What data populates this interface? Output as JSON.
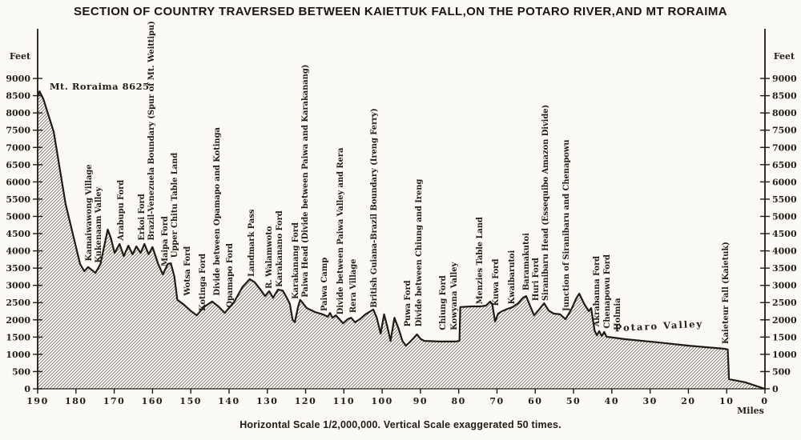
{
  "page": {
    "background": "#fbfaf5",
    "ink": "#1f1b15"
  },
  "chart_data": {
    "type": "area",
    "title": "SECTION OF COUNTRY TRAVERSED BETWEEN KAIETTUK FALL,ON THE POTARO RIVER,AND MT RORAIMA",
    "caption": "Horizontal Scale 1/2,000,000. Vertical Scale exaggerated 50 times.",
    "x_axis": {
      "unit": "Miles",
      "min": 0,
      "max": 190,
      "tick_step": 10,
      "direction": "190 at left, 0 at right",
      "ticks": [
        190,
        180,
        170,
        160,
        150,
        140,
        130,
        120,
        110,
        100,
        90,
        80,
        70,
        60,
        50,
        40,
        30,
        20,
        10,
        0
      ]
    },
    "y_axis": {
      "unit": "Feet",
      "min": 0,
      "max": 9000,
      "tick_step": 500,
      "sides": [
        "left",
        "right"
      ],
      "ticks": [
        0,
        500,
        1000,
        1500,
        2000,
        2500,
        3000,
        3500,
        4000,
        4500,
        5000,
        5500,
        6000,
        6500,
        7000,
        7500,
        8000,
        8500,
        9000
      ]
    },
    "horizontal_scale": "1/2,000,000",
    "vertical_exaggeration": "50 times",
    "profile": {
      "x_meaning": "miles from Kaieteur (Kaietuk) Fall",
      "y_meaning": "elevation in feet",
      "points": [
        [
          190.0,
          8480
        ],
        [
          189.5,
          8625
        ],
        [
          188.5,
          8400
        ],
        [
          185.8,
          7450
        ],
        [
          182.7,
          5360
        ],
        [
          178.9,
          3620
        ],
        [
          177.8,
          3410
        ],
        [
          176.8,
          3530
        ],
        [
          176.0,
          3460
        ],
        [
          174.9,
          3360
        ],
        [
          173.6,
          3620
        ],
        [
          171.7,
          4620
        ],
        [
          170.9,
          4380
        ],
        [
          169.9,
          3940
        ],
        [
          168.6,
          4200
        ],
        [
          167.5,
          3850
        ],
        [
          166.3,
          4150
        ],
        [
          165.2,
          3900
        ],
        [
          164.2,
          4130
        ],
        [
          163.1,
          3940
        ],
        [
          162.1,
          4200
        ],
        [
          161.0,
          3900
        ],
        [
          160.0,
          4110
        ],
        [
          158.5,
          3620
        ],
        [
          157.3,
          3320
        ],
        [
          156.0,
          3620
        ],
        [
          155.2,
          3640
        ],
        [
          154.3,
          3270
        ],
        [
          153.5,
          2580
        ],
        [
          151.8,
          2440
        ],
        [
          150.1,
          2270
        ],
        [
          148.4,
          2130
        ],
        [
          146.6,
          2370
        ],
        [
          144.4,
          2530
        ],
        [
          142.8,
          2390
        ],
        [
          141.1,
          2200
        ],
        [
          138.6,
          2530
        ],
        [
          136.5,
          2950
        ],
        [
          134.6,
          3180
        ],
        [
          133.3,
          3090
        ],
        [
          131.8,
          2880
        ],
        [
          130.6,
          2690
        ],
        [
          129.5,
          2830
        ],
        [
          128.5,
          2640
        ],
        [
          127.2,
          2880
        ],
        [
          126.0,
          2850
        ],
        [
          124.9,
          2640
        ],
        [
          124.1,
          2460
        ],
        [
          123.4,
          2000
        ],
        [
          122.8,
          1930
        ],
        [
          122.0,
          2370
        ],
        [
          121.4,
          2580
        ],
        [
          119.7,
          2340
        ],
        [
          117.6,
          2230
        ],
        [
          115.5,
          2160
        ],
        [
          114.2,
          2090
        ],
        [
          113.6,
          2200
        ],
        [
          113.0,
          2060
        ],
        [
          112.1,
          2130
        ],
        [
          111.5,
          2060
        ],
        [
          110.2,
          1900
        ],
        [
          109.0,
          2020
        ],
        [
          108.1,
          2060
        ],
        [
          107.1,
          1930
        ],
        [
          105.8,
          2020
        ],
        [
          104.4,
          2160
        ],
        [
          102.3,
          2300
        ],
        [
          101.4,
          2060
        ],
        [
          100.4,
          1600
        ],
        [
          99.5,
          2160
        ],
        [
          98.7,
          1830
        ],
        [
          97.8,
          1390
        ],
        [
          96.8,
          2060
        ],
        [
          95.7,
          1740
        ],
        [
          94.7,
          1390
        ],
        [
          93.8,
          1250
        ],
        [
          92.8,
          1350
        ],
        [
          91.7,
          1480
        ],
        [
          90.9,
          1580
        ],
        [
          89.9,
          1440
        ],
        [
          89.0,
          1390
        ],
        [
          85.0,
          1370
        ],
        [
          80.8,
          1370
        ],
        [
          79.8,
          1390
        ],
        [
          79.6,
          2370
        ],
        [
          76.6,
          2390
        ],
        [
          74.5,
          2390
        ],
        [
          72.9,
          2410
        ],
        [
          71.8,
          2530
        ],
        [
          71.2,
          2440
        ],
        [
          70.5,
          1950
        ],
        [
          69.7,
          2180
        ],
        [
          68.7,
          2250
        ],
        [
          67.2,
          2320
        ],
        [
          65.9,
          2370
        ],
        [
          64.5,
          2480
        ],
        [
          63.2,
          2640
        ],
        [
          62.4,
          2690
        ],
        [
          61.3,
          2390
        ],
        [
          60.3,
          2130
        ],
        [
          59.0,
          2300
        ],
        [
          57.7,
          2480
        ],
        [
          56.5,
          2270
        ],
        [
          55.2,
          2180
        ],
        [
          53.5,
          2160
        ],
        [
          52.1,
          2020
        ],
        [
          50.6,
          2300
        ],
        [
          49.3,
          2620
        ],
        [
          48.5,
          2760
        ],
        [
          47.2,
          2460
        ],
        [
          46.0,
          2250
        ],
        [
          45.4,
          2340
        ],
        [
          44.5,
          1690
        ],
        [
          43.9,
          1550
        ],
        [
          43.3,
          1670
        ],
        [
          42.6,
          1530
        ],
        [
          42.0,
          1650
        ],
        [
          41.4,
          1510
        ],
        [
          36.7,
          1440
        ],
        [
          28.3,
          1350
        ],
        [
          19.9,
          1250
        ],
        [
          10.5,
          1160
        ],
        [
          9.7,
          1140
        ],
        [
          9.4,
          280
        ],
        [
          5.2,
          190
        ],
        [
          0.0,
          0
        ]
      ]
    },
    "features": [
      {
        "label": "Kamaiwawong Village",
        "mile": 176.8,
        "label_base_feet": 3700
      },
      {
        "label": "Kukenaam Valley",
        "mile": 174.3,
        "label_base_feet": 3650
      },
      {
        "label": "Arabupu Ford",
        "mile": 168.4,
        "label_base_feet": 4300
      },
      {
        "label": "Erkoi Ford",
        "mile": 163.0,
        "label_base_feet": 4300
      },
      {
        "label": "Brazil-Venezuela Boundary (Spur of Mt. Weittipu)",
        "mile": 160.5,
        "label_base_feet": 4300
      },
      {
        "label": "Maipa Ford",
        "mile": 156.9,
        "label_base_feet": 3550
      },
      {
        "label": "Upper Chitu Table Land",
        "mile": 154.4,
        "label_base_feet": 3800
      },
      {
        "label": "Wotsa Ford",
        "mile": 151.1,
        "label_base_feet": 2700
      },
      {
        "label": "Kotinga Ford",
        "mile": 147.1,
        "label_base_feet": 2250
      },
      {
        "label": "Divide between Opamapo and Kotinga",
        "mile": 143.3,
        "label_base_feet": 2700
      },
      {
        "label": "Opamapo Ford",
        "mile": 140.0,
        "label_base_feet": 2350
      },
      {
        "label": "Landmark Pass",
        "mile": 134.3,
        "label_base_feet": 3250
      },
      {
        "label": "R. Walamwoto",
        "mile": 129.7,
        "label_base_feet": 2900
      },
      {
        "label": "Karakanano Ford",
        "mile": 127.0,
        "label_base_feet": 2950
      },
      {
        "label": "Karakanang Ford",
        "mile": 122.8,
        "label_base_feet": 2600
      },
      {
        "label": "Paiwa Head (Divide between Paiwa and Karakanang)",
        "mile": 120.3,
        "label_base_feet": 2650
      },
      {
        "label": "Paiwa Camp",
        "mile": 115.3,
        "label_base_feet": 2250
      },
      {
        "label": "Divide between Paiwa Valley and Rera",
        "mile": 111.1,
        "label_base_feet": 2150
      },
      {
        "label": "Rera Village",
        "mile": 107.8,
        "label_base_feet": 2200
      },
      {
        "label": "British Guiana-Brazil Boundary (Ireng Ferry)",
        "mile": 102.3,
        "label_base_feet": 2350
      },
      {
        "label": "Puwa Ford",
        "mile": 93.5,
        "label_base_feet": 1800
      },
      {
        "label": "Divide between Chiung and Ireng",
        "mile": 90.6,
        "label_base_feet": 1800
      },
      {
        "label": "Chiung Ford",
        "mile": 84.3,
        "label_base_feet": 1700
      },
      {
        "label": "Kowyana Valley",
        "mile": 81.4,
        "label_base_feet": 1700
      },
      {
        "label": "Menzies Table Land",
        "mile": 74.7,
        "label_base_feet": 2450
      },
      {
        "label": "Kuwa Ford",
        "mile": 70.5,
        "label_base_feet": 2400
      },
      {
        "label": "Kwaibarutoi",
        "mile": 66.3,
        "label_base_feet": 2450
      },
      {
        "label": "Baramakutoi",
        "mile": 62.6,
        "label_base_feet": 2850
      },
      {
        "label": "Huri Ford",
        "mile": 60.1,
        "label_base_feet": 2550
      },
      {
        "label": "Siranibaru Head (Essequibo Amazon Divide)",
        "mile": 57.5,
        "label_base_feet": 2550
      },
      {
        "label": "Junction of Siranibaru and Chenapowu",
        "mile": 52.1,
        "label_base_feet": 2250
      },
      {
        "label": "Akrabanna Ford",
        "mile": 44.2,
        "label_base_feet": 1800
      },
      {
        "label": "Chenapowu Ford",
        "mile": 41.4,
        "label_base_feet": 1750
      },
      {
        "label": "Holmia",
        "mile": 38.7,
        "label_base_feet": 1700
      },
      {
        "label": "Kaieteur Fall (Kaietuk)",
        "mile": 10.5,
        "label_base_feet": 1300
      }
    ],
    "annotations": [
      {
        "label": "Mt. Roraima 8625",
        "mile": 186.9,
        "feet": 8680,
        "rotate": 0,
        "anchor": "start",
        "spacing": 0.5
      },
      {
        "label": "Potaro Valley",
        "mile": 27.6,
        "feet": 1730,
        "rotate": -3,
        "anchor": "middle",
        "spacing": 2
      }
    ]
  }
}
